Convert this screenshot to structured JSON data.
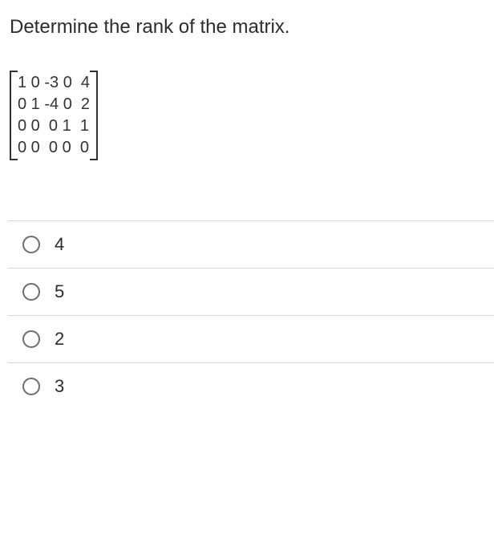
{
  "question": {
    "text": "Determine the rank of the matrix.",
    "text_color": "#2c2c2c",
    "font_size": 24
  },
  "matrix": {
    "rows": [
      "1 0 -3 0  4",
      "0 1 -4 0  2",
      "0 0  0 1  1",
      "0 0  0 0  0"
    ],
    "bracket_color": "#333333",
    "font_size": 20
  },
  "options": [
    {
      "label": "4"
    },
    {
      "label": "5"
    },
    {
      "label": "2"
    },
    {
      "label": "3"
    }
  ],
  "styles": {
    "divider_color": "#d6d6d6",
    "radio_border_color": "#6d6d6d",
    "option_font_size": 22,
    "background_color": "#ffffff"
  }
}
